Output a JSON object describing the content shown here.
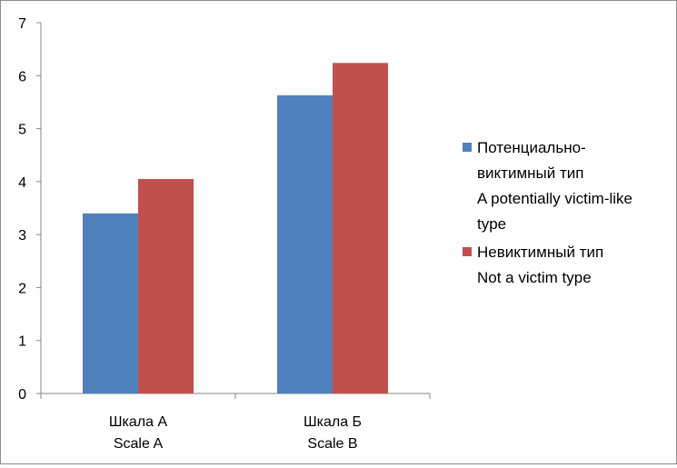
{
  "chart_data": {
    "type": "bar",
    "categories": [
      [
        "Шкала А",
        "Scale A"
      ],
      [
        "Шкала Б",
        "Scale B"
      ]
    ],
    "series": [
      {
        "name": [
          "Потенциально-",
          "виктимный тип",
          "A potentially victim-like",
          "type"
        ],
        "values": [
          3.4,
          5.63
        ],
        "color": "#4f81bd"
      },
      {
        "name": [
          "Невиктимный тип",
          "Not a victim type"
        ],
        "values": [
          4.05,
          6.24
        ],
        "color": "#c0504d"
      }
    ],
    "ylim": [
      0,
      7
    ],
    "yticks": [
      "0",
      "1",
      "2",
      "3",
      "4",
      "5",
      "6",
      "7"
    ],
    "grid": false,
    "legend_position": "right"
  }
}
